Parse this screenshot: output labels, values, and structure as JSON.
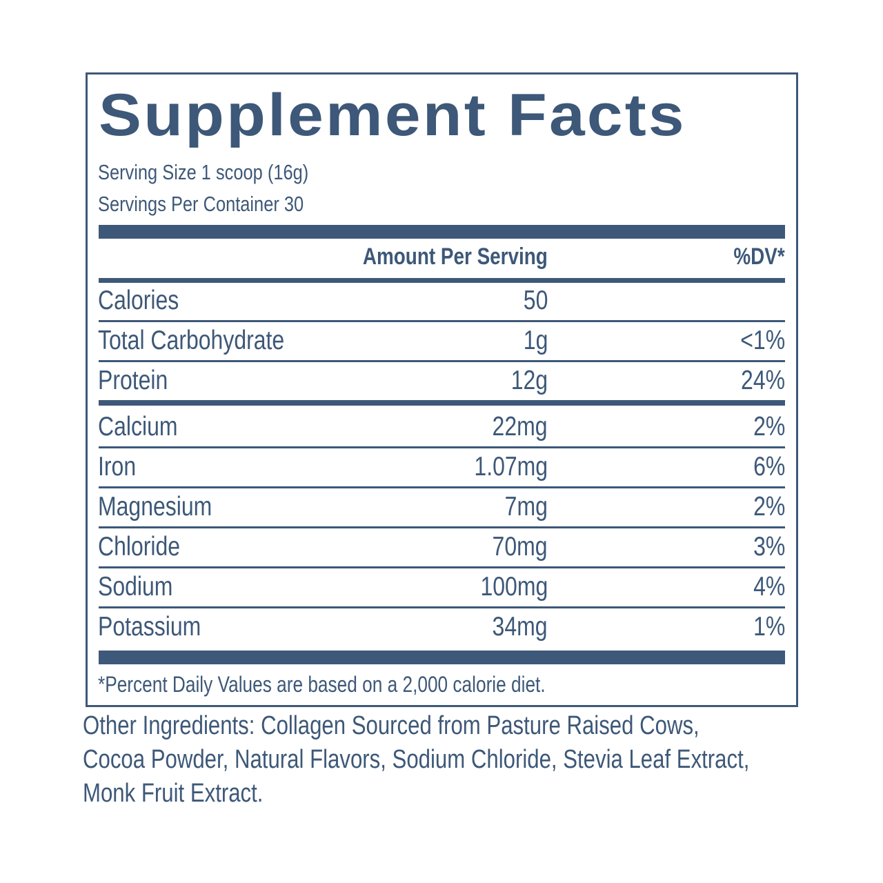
{
  "header": {
    "title": "Supplement Facts",
    "serving_size": "Serving Size 1 scoop (16g)",
    "servings_per_container": "Servings Per Container 30"
  },
  "table": {
    "columns": [
      "Amount Per Serving",
      "%DV*"
    ],
    "rows": [
      {
        "name": "Calories",
        "amount": "50"
      },
      {
        "name": "Total Carbohydrate",
        "amount": "1g",
        "dv": "<1%"
      },
      {
        "name": "Protein",
        "amount": "12g",
        "dv": "24%"
      },
      {
        "name": "Calcium",
        "amount": "22mg",
        "dv": "2%"
      },
      {
        "name": "Iron",
        "amount": "1.07mg",
        "dv": "6%"
      },
      {
        "name": "Magnesium",
        "amount": "7mg",
        "dv": "2%"
      },
      {
        "name": "Chloride",
        "amount": "70mg",
        "dv": "3%"
      },
      {
        "name": "Sodium",
        "amount": "100mg",
        "dv": "4%"
      },
      {
        "name": "Potassium",
        "amount": "34mg",
        "dv": "1%"
      }
    ]
  },
  "footnote": "*Percent Daily Values are based on a 2,000 calorie diet.",
  "other_ingredients": [
    "Other Ingredients: Collagen Sourced from Pasture Raised Cows,",
    "Cocoa Powder, Natural Flavors, Sodium Chloride, Stevia Leaf Extract,",
    "Monk Fruit Extract."
  ]
}
